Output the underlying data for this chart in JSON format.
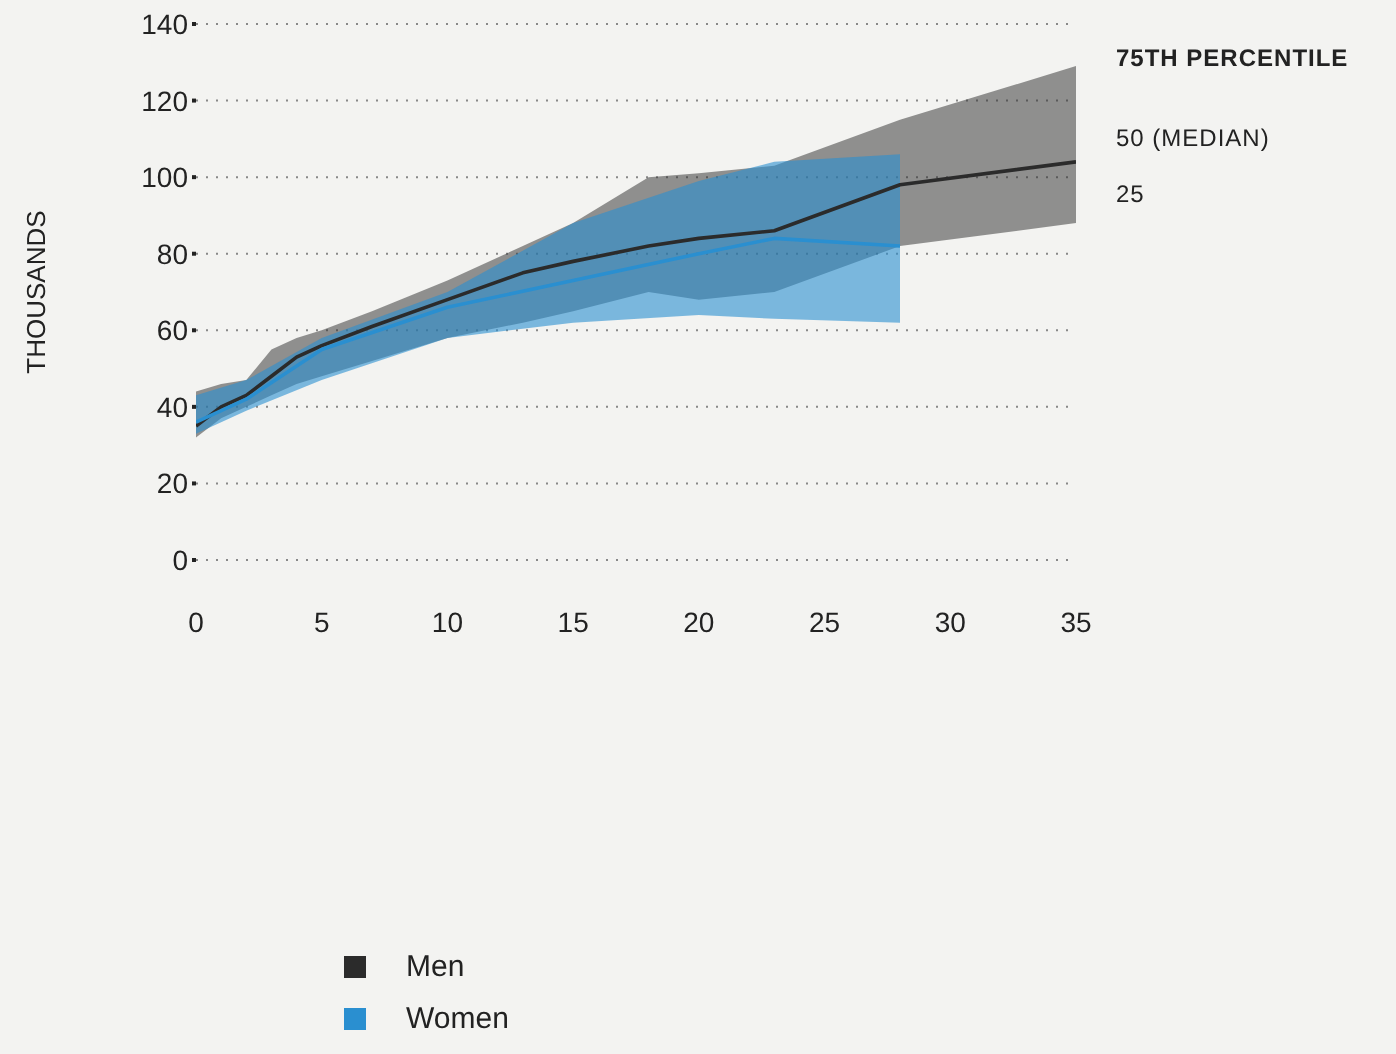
{
  "chart_data": {
    "type": "line",
    "ylabel": "THOUSANDS",
    "xlim": [
      0,
      35
    ],
    "xticks": [
      0,
      5,
      10,
      15,
      20,
      25,
      30,
      35
    ],
    "ylim": [
      0,
      140
    ],
    "yticks": [
      0,
      20,
      40,
      60,
      80,
      100,
      120,
      140
    ],
    "grid": "y",
    "legend": "bottom",
    "series": [
      {
        "name": "Men",
        "color": "#2b2b2b",
        "x": [
          0,
          1,
          2,
          3,
          4,
          5,
          7,
          10,
          13,
          15,
          18,
          20,
          23,
          28,
          35
        ],
        "values": [
          35,
          40,
          43,
          48,
          53,
          56,
          61,
          68,
          75,
          78,
          82,
          84,
          86,
          98,
          104
        ],
        "lower": [
          32,
          37,
          40,
          43,
          46,
          48,
          52,
          58,
          62,
          65,
          70,
          68,
          70,
          82,
          88
        ],
        "upper": [
          44,
          46,
          47,
          55,
          58,
          60,
          65,
          73,
          82,
          88,
          100,
          101,
          103,
          115,
          129
        ]
      },
      {
        "name": "Women",
        "color": "#2a8fd0",
        "x": [
          0,
          2,
          5,
          10,
          15,
          20,
          23,
          28
        ],
        "values": [
          36,
          42,
          55,
          66,
          73,
          80,
          84,
          82
        ],
        "lower": [
          33,
          39,
          47,
          58,
          62,
          64,
          63,
          62
        ],
        "upper": [
          43,
          47,
          58,
          70,
          88,
          99,
          104,
          106
        ]
      }
    ],
    "annotations": [
      "75TH PERCENTILE",
      "50 (MEDIAN)",
      "25"
    ]
  }
}
